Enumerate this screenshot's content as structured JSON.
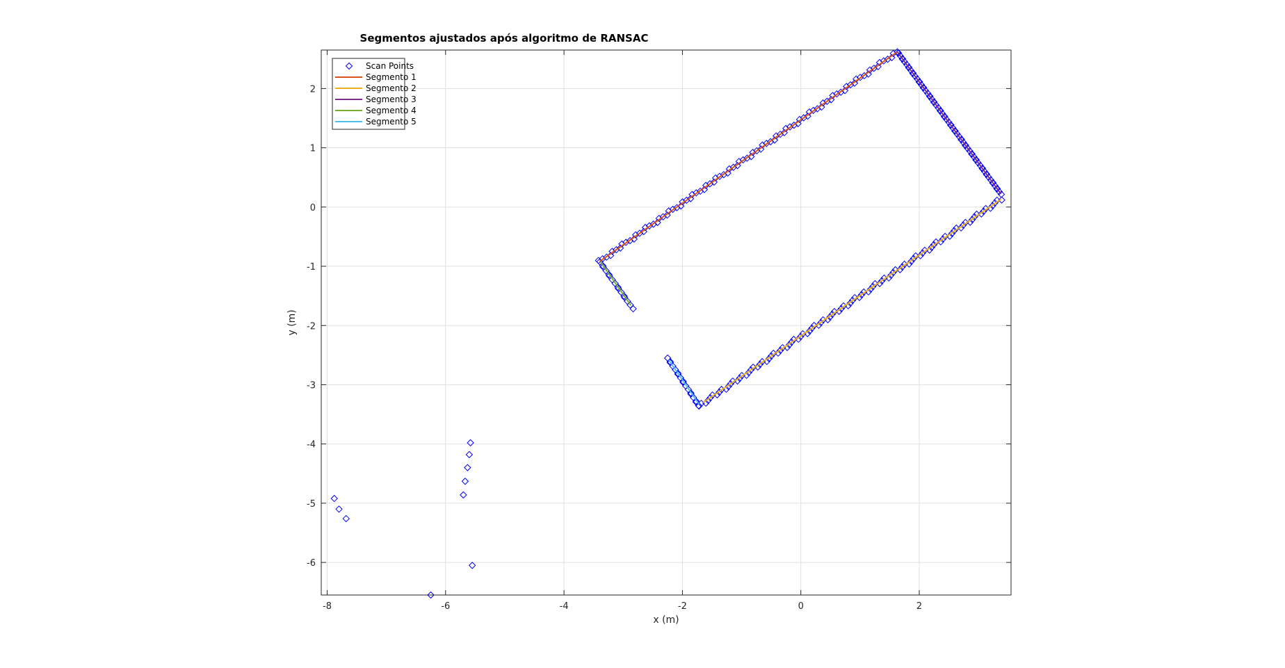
{
  "chart_data": {
    "type": "scatter",
    "title": "Segmentos ajustados após algoritmo de RANSAC",
    "xlabel": "x (m)",
    "ylabel": "y (m)",
    "xlim": [
      -8.1,
      3.55
    ],
    "ylim": [
      -6.55,
      2.65
    ],
    "xticks": [
      -8,
      -6,
      -4,
      -2,
      0,
      2
    ],
    "yticks": [
      -6,
      -5,
      -4,
      -3,
      -2,
      -1,
      0,
      1,
      2
    ],
    "grid": true,
    "legend_position": "top-left",
    "legend": [
      "Scan Points",
      "Segmento 1",
      "Segmento 2",
      "Segmento 3",
      "Segmento 4",
      "Segmento 5"
    ],
    "scan_points": {
      "name": "Scan Points",
      "color": "#0000ff",
      "marker": "diamond",
      "lines": [
        {
          "from": [
            -3.4,
            -0.92
          ],
          "to": [
            1.63,
            2.62
          ],
          "count": 90
        },
        {
          "from": [
            1.63,
            2.62
          ],
          "to": [
            3.38,
            0.22
          ],
          "count": 70
        },
        {
          "from": [
            3.38,
            0.13
          ],
          "to": [
            -1.72,
            -3.36
          ],
          "count": 105
        },
        {
          "from": [
            -3.4,
            -0.92
          ],
          "to": [
            -2.85,
            -1.7
          ],
          "count": 16
        },
        {
          "from": [
            -2.25,
            -2.55
          ],
          "to": [
            -1.72,
            -3.36
          ],
          "count": 18
        }
      ],
      "extra": [
        [
          -7.88,
          -4.92
        ],
        [
          -7.8,
          -5.1
        ],
        [
          -7.68,
          -5.26
        ],
        [
          -5.58,
          -3.98
        ],
        [
          -5.6,
          -4.18
        ],
        [
          -5.63,
          -4.4
        ],
        [
          -5.67,
          -4.63
        ],
        [
          -5.7,
          -4.86
        ],
        [
          -5.55,
          -6.05
        ],
        [
          -6.25,
          -6.55
        ]
      ]
    },
    "segments": [
      {
        "name": "Segmento 1",
        "color": "#d95319",
        "x": [
          -3.4,
          1.63
        ],
        "y": [
          -0.92,
          2.62
        ]
      },
      {
        "name": "Segmento 2",
        "color": "#edb120",
        "x": [
          3.38,
          -1.65
        ],
        "y": [
          0.13,
          -3.3
        ]
      },
      {
        "name": "Segmento 3",
        "color": "#7e2f8e",
        "x": [
          1.63,
          3.38
        ],
        "y": [
          2.62,
          0.22
        ]
      },
      {
        "name": "Segmento 4",
        "color": "#77ac30",
        "x": [
          -3.38,
          -2.87
        ],
        "y": [
          -0.93,
          -1.66
        ]
      },
      {
        "name": "Segmento 5",
        "color": "#4dbeee",
        "x": [
          -2.23,
          -1.72
        ],
        "y": [
          -2.58,
          -3.33
        ]
      }
    ]
  }
}
